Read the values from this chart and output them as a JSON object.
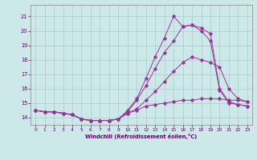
{
  "xlabel": "Windchill (Refroidissement éolien,°C)",
  "bg_color": "#cce8e8",
  "grid_color": "#aacccc",
  "line_color": "#993399",
  "xlim": [
    -0.5,
    23.5
  ],
  "ylim": [
    13.5,
    21.8
  ],
  "xticks": [
    0,
    1,
    2,
    3,
    4,
    5,
    6,
    7,
    8,
    9,
    10,
    11,
    12,
    13,
    14,
    15,
    16,
    17,
    18,
    19,
    20,
    21,
    22,
    23
  ],
  "yticks": [
    14,
    15,
    16,
    17,
    18,
    19,
    20,
    21
  ],
  "line1_x": [
    0,
    1,
    2,
    3,
    4,
    5,
    6,
    7,
    8,
    9,
    10,
    11,
    12,
    13,
    14,
    15,
    16,
    17,
    18,
    19,
    20,
    21,
    22,
    23
  ],
  "line1_y": [
    14.5,
    14.4,
    14.4,
    14.3,
    14.2,
    13.9,
    13.8,
    13.8,
    13.8,
    13.9,
    14.3,
    14.5,
    14.8,
    14.9,
    15.0,
    15.1,
    15.2,
    15.2,
    15.3,
    15.3,
    15.3,
    15.2,
    15.2,
    15.1
  ],
  "line2_x": [
    0,
    1,
    2,
    3,
    4,
    5,
    6,
    7,
    8,
    9,
    10,
    11,
    12,
    13,
    14,
    15,
    16,
    17,
    18,
    19,
    20,
    21,
    22,
    23
  ],
  "line2_y": [
    14.5,
    14.4,
    14.4,
    14.3,
    14.2,
    13.9,
    13.8,
    13.8,
    13.8,
    13.9,
    14.3,
    14.6,
    15.2,
    15.8,
    16.5,
    17.2,
    17.8,
    18.2,
    18.0,
    17.8,
    17.5,
    16.0,
    15.3,
    15.1
  ],
  "line3_x": [
    0,
    1,
    2,
    3,
    4,
    5,
    6,
    7,
    8,
    9,
    10,
    11,
    12,
    13,
    14,
    15,
    16,
    17,
    18,
    19,
    20,
    21,
    22,
    23
  ],
  "line3_y": [
    14.5,
    14.4,
    14.4,
    14.3,
    14.2,
    13.9,
    13.8,
    13.8,
    13.8,
    13.9,
    14.4,
    15.2,
    16.2,
    17.4,
    18.5,
    19.3,
    20.3,
    20.4,
    20.2,
    19.8,
    16.0,
    15.1,
    14.9,
    14.8
  ],
  "line4_x": [
    0,
    1,
    2,
    3,
    4,
    5,
    6,
    7,
    8,
    9,
    10,
    11,
    12,
    13,
    14,
    15,
    16,
    17,
    18,
    19,
    20,
    21,
    22,
    23
  ],
  "line4_y": [
    14.5,
    14.4,
    14.4,
    14.3,
    14.2,
    13.9,
    13.8,
    13.8,
    13.8,
    13.9,
    14.5,
    15.3,
    16.7,
    18.2,
    19.5,
    21.0,
    20.3,
    20.4,
    20.0,
    19.3,
    15.9,
    15.0,
    14.9,
    14.8
  ]
}
